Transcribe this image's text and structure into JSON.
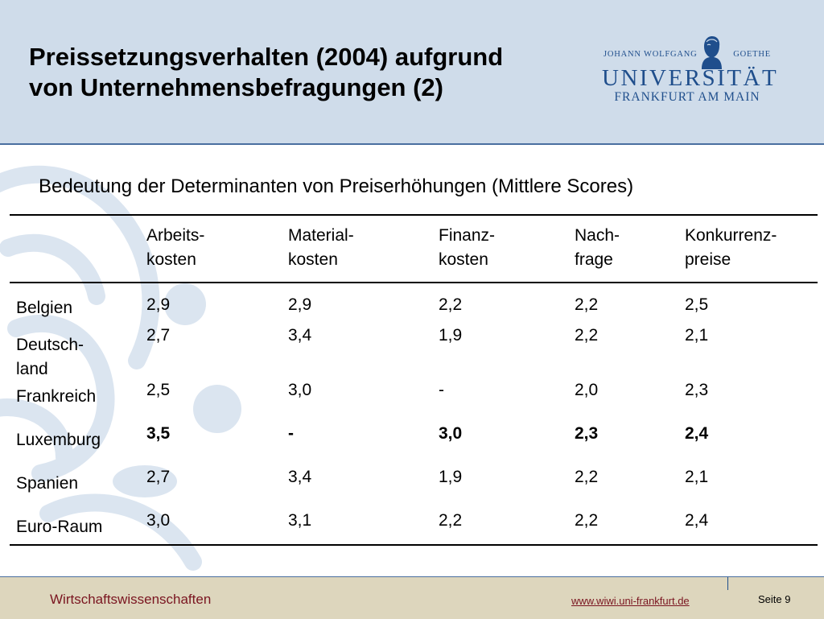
{
  "slide": {
    "title_line1": "Preissetzungsverhalten (2004) aufgrund",
    "title_line2": "von Unternehmensbefragungen (2)",
    "subtitle": "Bedeutung der Determinanten von Preiserhöhungen (Mittlere Scores)"
  },
  "logo": {
    "text_left": "JOHANN WOLFGANG",
    "text_right": "GOETHE",
    "name": "UNIVERSITÄT",
    "city": "FRANKFURT AM MAIN"
  },
  "table": {
    "headers": [
      {
        "line1": "",
        "line2": ""
      },
      {
        "line1": "Arbeits-",
        "line2": "kosten"
      },
      {
        "line1": "Material-",
        "line2": "kosten"
      },
      {
        "line1": "Finanz-",
        "line2": "kosten"
      },
      {
        "line1": "Nach-",
        "line2": "frage"
      },
      {
        "line1": "Konkurrenz-",
        "line2": "preise"
      }
    ],
    "rows": [
      {
        "country": "Belgien",
        "values": [
          "2,9",
          "2,9",
          "2,2",
          "2,2",
          "2,5"
        ],
        "bold": false
      },
      {
        "country_line1": "Deutsch-",
        "country_line2": "land",
        "values": [
          "2,7",
          "3,4",
          "1,9",
          "2,2",
          "2,1"
        ],
        "bold": false
      },
      {
        "country": "Frankreich",
        "values": [
          "2,5",
          "3,0",
          "-",
          "2,0",
          "2,3"
        ],
        "bold": false
      },
      {
        "country": "Luxemburg",
        "values": [
          "3,5",
          "-",
          "3,0",
          "2,3",
          "2,4"
        ],
        "bold": true
      },
      {
        "country": "Spanien",
        "values": [
          "2,7",
          "3,4",
          "1,9",
          "2,2",
          "2,1"
        ],
        "bold": false
      },
      {
        "country": "Euro-Raum",
        "values": [
          "3,0",
          "3,1",
          "2,2",
          "2,2",
          "2,4"
        ],
        "bold": false
      }
    ]
  },
  "footer": {
    "faculty": "Wirtschaftswissenschaften",
    "url": "www.wiwi.uni-frankfurt.de",
    "page": "Seite 9"
  },
  "colors": {
    "header_bg": "#cfdcea",
    "footer_bg": "#ddd6bd",
    "brand_blue": "#1f4e8c",
    "footer_text": "#7a1520"
  }
}
